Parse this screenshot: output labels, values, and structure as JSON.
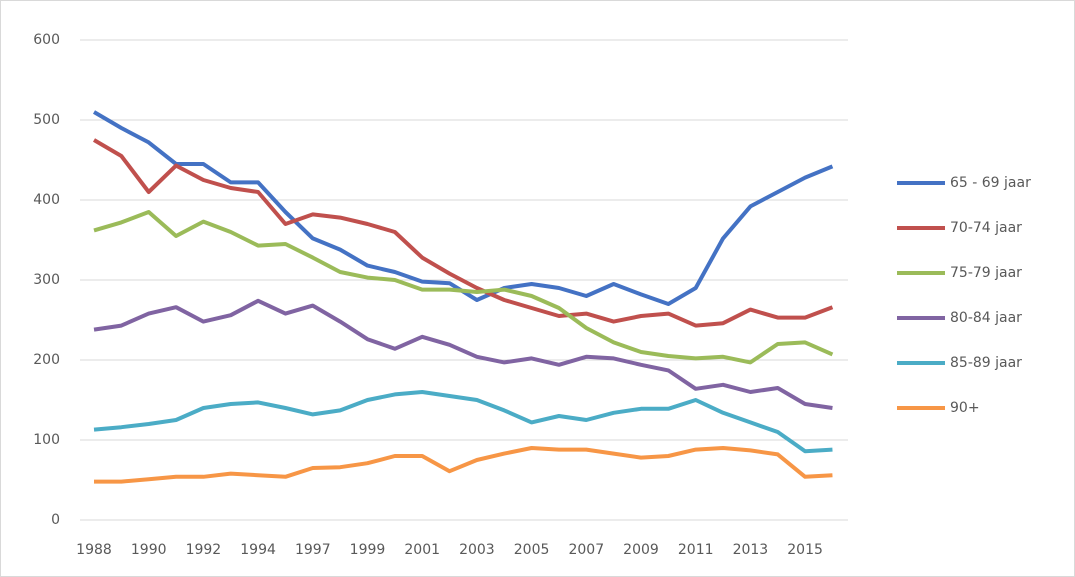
{
  "chart_data": {
    "type": "line",
    "categories": [
      "1988",
      null,
      "1990",
      null,
      "1992",
      null,
      "1994",
      null,
      "1997",
      null,
      "1999",
      null,
      "2001",
      null,
      "2003",
      null,
      "2005",
      null,
      "2007",
      null,
      "2009",
      null,
      "2011",
      null,
      "2013",
      null,
      "2015",
      null
    ],
    "series": [
      {
        "name": "65 - 69 jaar",
        "color": "#4472c4",
        "values": [
          510,
          490,
          472,
          445,
          445,
          422,
          422,
          385,
          352,
          338,
          318,
          310,
          298,
          296,
          275,
          290,
          295,
          290,
          280,
          295,
          282,
          270,
          290,
          352,
          392,
          410,
          428,
          442
        ]
      },
      {
        "name": "70-74 jaar",
        "color": "#c0504d",
        "values": [
          475,
          455,
          410,
          443,
          425,
          415,
          410,
          370,
          382,
          378,
          370,
          360,
          328,
          308,
          290,
          275,
          265,
          255,
          258,
          248,
          255,
          258,
          243,
          246,
          263,
          253,
          253,
          266
        ]
      },
      {
        "name": "75-79 jaar",
        "color": "#9bbb59",
        "values": [
          362,
          372,
          385,
          355,
          373,
          360,
          343,
          345,
          328,
          310,
          303,
          300,
          288,
          288,
          285,
          288,
          280,
          265,
          240,
          222,
          210,
          205,
          202,
          204,
          197,
          220,
          222,
          207
        ]
      },
      {
        "name": "80-84 jaar",
        "color": "#8064a2",
        "values": [
          238,
          243,
          258,
          266,
          248,
          256,
          274,
          258,
          268,
          248,
          226,
          214,
          229,
          219,
          204,
          197,
          202,
          194,
          204,
          202,
          194,
          187,
          164,
          169,
          160,
          165,
          145,
          140
        ]
      },
      {
        "name": "85-89 jaar",
        "color": "#4bacc6",
        "values": [
          113,
          116,
          120,
          125,
          140,
          145,
          147,
          140,
          132,
          137,
          150,
          157,
          160,
          155,
          150,
          137,
          122,
          130,
          125,
          134,
          139,
          139,
          150,
          134,
          122,
          110,
          86,
          88
        ]
      },
      {
        "name": "90+",
        "color": "#f79646",
        "values": [
          48,
          48,
          51,
          54,
          54,
          58,
          56,
          54,
          65,
          66,
          71,
          80,
          80,
          61,
          75,
          83,
          90,
          88,
          88,
          83,
          78,
          80,
          88,
          90,
          87,
          82,
          54,
          56
        ]
      }
    ],
    "ylim": [
      0,
      600
    ],
    "yticks": [
      0,
      100,
      200,
      300,
      400,
      500,
      600
    ],
    "grid": true,
    "legend": "right"
  }
}
